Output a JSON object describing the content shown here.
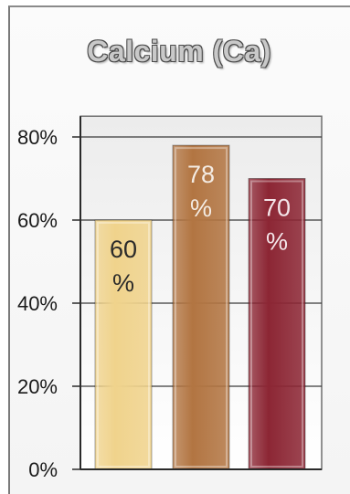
{
  "chart_data": {
    "type": "bar",
    "title": "Calcium (Ca)",
    "categories": [
      "",
      "",
      ""
    ],
    "values": [
      60,
      78,
      70
    ],
    "value_labels": [
      [
        "60",
        "%"
      ],
      [
        "78",
        "%"
      ],
      [
        "70",
        "%"
      ]
    ],
    "bar_colors": [
      "#f0d38c",
      "#b27542",
      "#8c2634"
    ],
    "label_colors": [
      "#2a2a2a",
      "#f4ece4",
      "#f4e6ea"
    ],
    "yticks": [
      "0%",
      "20%",
      "40%",
      "60%",
      "80%"
    ],
    "ytick_values": [
      0,
      20,
      40,
      60,
      80
    ],
    "ylim": [
      0,
      85
    ],
    "grid": true,
    "legend": "none"
  }
}
